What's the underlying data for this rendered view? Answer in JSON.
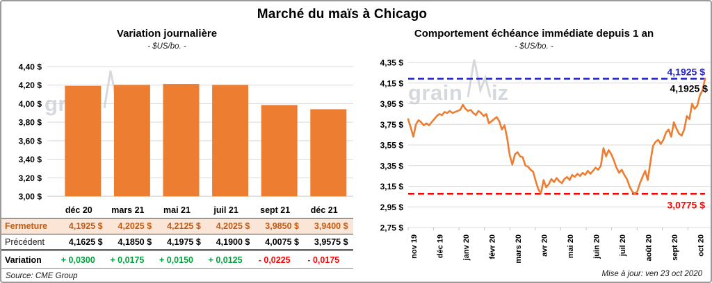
{
  "page_title": "Marché du maïs à Chicago",
  "footer": {
    "updated": "Mise à jour: ven 23 oct 2020"
  },
  "watermark": {
    "text_a": "grain",
    "text_b": "iz"
  },
  "colors": {
    "accent_orange": "#ED7D31",
    "grid": "#D9D9D9",
    "baseline": "#BFBFBF",
    "highlight_row_bg": "#FBE5D6",
    "close_text": "#C55A11",
    "positive": "#00A33C",
    "negative": "#FF0000",
    "high_line_blue": "#2222CC",
    "low_line_red": "#FF0000",
    "watermark": "#CBD0D6"
  },
  "chart_data": [
    {
      "type": "bar",
      "title": "Variation journalière",
      "subtitle": "- $US/bo. -",
      "categories": [
        "déc 20",
        "mars 21",
        "mai 21",
        "juil 21",
        "sept 21",
        "déc 21"
      ],
      "values": [
        4.1925,
        4.2025,
        4.2125,
        4.2025,
        3.985,
        3.94
      ],
      "ylim": [
        3.0,
        4.4
      ],
      "ytick_step": 0.2,
      "ytick_labels": [
        "4,40 $",
        "4,20 $",
        "4,00 $",
        "3,80 $",
        "3,60 $",
        "3,40 $",
        "3,20 $",
        "3,00 $"
      ],
      "grid": true,
      "legend": "none"
    },
    {
      "type": "line",
      "title": "Comportement échéance immédiate depuis 1 an",
      "subtitle": "- $US/bo. -",
      "x_categories": [
        "nov 19",
        "déc 19",
        "janv 20",
        "févr 20",
        "mars 20",
        "avr 20",
        "mai 20",
        "juin 20",
        "juil 20",
        "août 20",
        "sept 20",
        "oct 20"
      ],
      "ylim": [
        2.75,
        4.35
      ],
      "ytick_step": 0.2,
      "ytick_labels": [
        "4,35 $",
        "4,15 $",
        "3,95 $",
        "3,75 $",
        "3,55 $",
        "3,35 $",
        "3,15 $",
        "2,95 $",
        "2,75 $"
      ],
      "grid": true,
      "legend": "none",
      "high_line": {
        "value": 4.1925,
        "label": "4,1925 $"
      },
      "low_line": {
        "value": 3.0775,
        "label": "3,0775 $"
      },
      "last_point": {
        "value": 4.1925,
        "label": "4,1925 $"
      },
      "values": [
        3.8,
        3.72,
        3.63,
        3.75,
        3.79,
        3.77,
        3.74,
        3.76,
        3.74,
        3.77,
        3.8,
        3.83,
        3.85,
        3.84,
        3.87,
        3.86,
        3.88,
        3.86,
        3.87,
        3.88,
        3.89,
        3.94,
        3.9,
        3.88,
        3.89,
        3.86,
        3.84,
        3.88,
        3.86,
        3.83,
        3.85,
        3.76,
        3.78,
        3.8,
        3.82,
        3.78,
        3.7,
        3.74,
        3.62,
        3.45,
        3.36,
        3.46,
        3.48,
        3.44,
        3.43,
        3.35,
        3.34,
        3.31,
        3.29,
        3.2,
        3.12,
        3.08,
        3.21,
        3.14,
        3.17,
        3.22,
        3.19,
        3.23,
        3.2,
        3.18,
        3.22,
        3.24,
        3.21,
        3.26,
        3.24,
        3.27,
        3.25,
        3.28,
        3.26,
        3.3,
        3.27,
        3.3,
        3.33,
        3.31,
        3.35,
        3.52,
        3.44,
        3.5,
        3.46,
        3.4,
        3.33,
        3.28,
        3.31,
        3.26,
        3.22,
        3.15,
        3.1,
        3.0775,
        3.1,
        3.18,
        3.24,
        3.3,
        3.21,
        3.38,
        3.54,
        3.58,
        3.6,
        3.56,
        3.6,
        3.67,
        3.7,
        3.63,
        3.77,
        3.71,
        3.66,
        3.64,
        3.7,
        3.83,
        3.8,
        3.95,
        3.9,
        3.93,
        4.03,
        4.08,
        4.1925
      ]
    },
    {
      "type": "table",
      "columns": [
        "déc 20",
        "mars 21",
        "mai 21",
        "juil 21",
        "sept 21",
        "déc 21"
      ],
      "rows": [
        {
          "label": "Fermeture",
          "style": "close",
          "values": [
            "4,1925 $",
            "4,2025 $",
            "4,2125 $",
            "4,2025 $",
            "3,9850 $",
            "3,9400 $"
          ]
        },
        {
          "label": "Précédent",
          "style": "previous",
          "values": [
            "4,1625 $",
            "4,1850 $",
            "4,1975 $",
            "4,1900 $",
            "4,0075 $",
            "3,9575 $"
          ]
        },
        {
          "label": "Variation",
          "style": "variation",
          "values": [
            "+ 0,0300",
            "+ 0,0175",
            "+ 0,0150",
            "+ 0,0125",
            "- 0,0225",
            "- 0,0175"
          ]
        }
      ],
      "source": "Source: CME Group"
    }
  ]
}
